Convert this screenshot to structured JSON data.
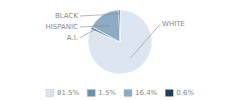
{
  "chart_data": {
    "type": "pie",
    "categories": [
      "WHITE",
      "A.I.",
      "HISPANIC",
      "BLACK"
    ],
    "values": [
      81.5,
      1.5,
      16.4,
      0.6
    ],
    "value_labels": [
      "81.5%",
      "1.5%",
      "16.4%",
      "0.6%"
    ],
    "colors": [
      "#dce6f1",
      "#6b93ae",
      "#8eabc4",
      "#1f3d5c"
    ],
    "legend": "bottom"
  }
}
